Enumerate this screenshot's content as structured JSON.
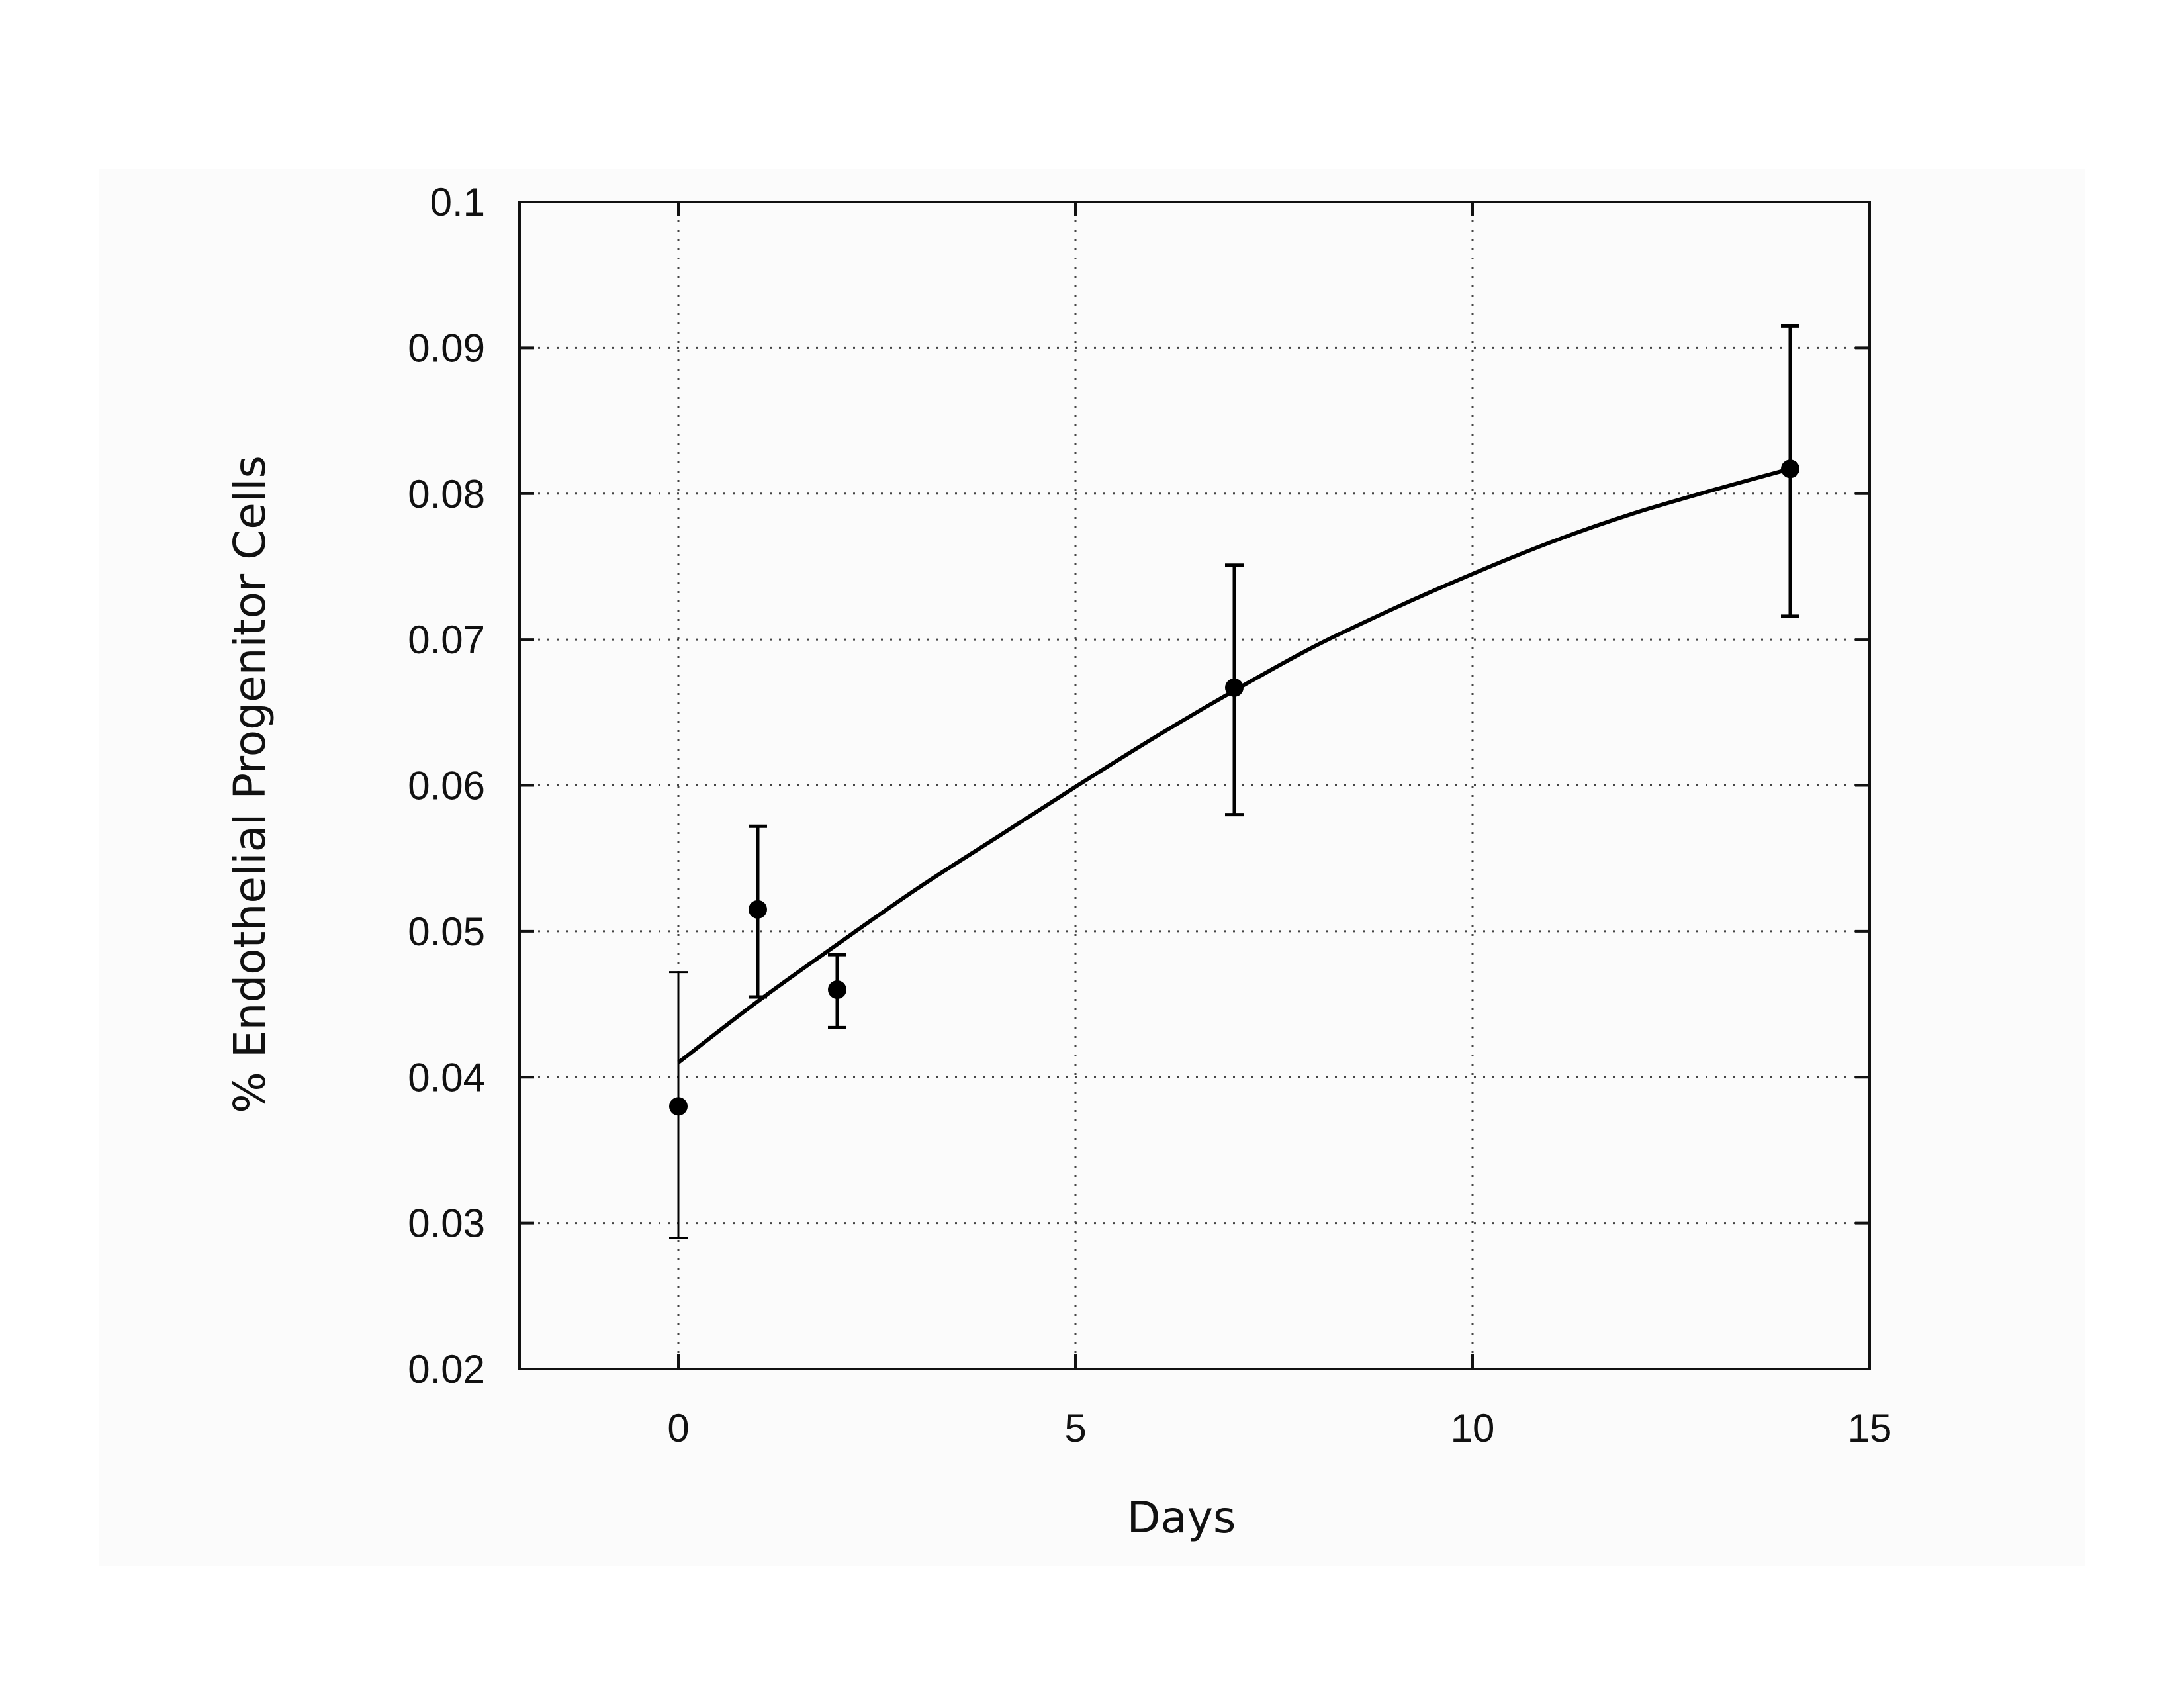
{
  "chart_data": {
    "type": "scatter",
    "title": "",
    "xlabel": "Days",
    "ylabel": "% Endothelial Progenitor Cells",
    "xlim": [
      -2,
      15
    ],
    "ylim": [
      0.02,
      0.1
    ],
    "grid": true,
    "x_ticks": [
      0,
      5,
      10,
      15
    ],
    "y_ticks": [
      0.02,
      0.03,
      0.04,
      0.05,
      0.06,
      0.07,
      0.08,
      0.09,
      0.1
    ],
    "x_tick_labels": [
      "0",
      "5",
      "10",
      "15"
    ],
    "y_tick_labels": [
      "0.02",
      "0.03",
      "0.04",
      "0.05",
      "0.06",
      "0.07",
      "0.08",
      "0.09",
      "0.1"
    ],
    "series": [
      {
        "x": [
          0,
          1,
          2,
          7,
          14
        ],
        "y": [
          0.038,
          0.0515,
          0.046,
          0.0667,
          0.0817
        ],
        "y_low": [
          0.029,
          0.0455,
          0.0434,
          0.058,
          0.0716
        ],
        "y_high": [
          0.0472,
          0.0572,
          0.0484,
          0.0751,
          0.0915
        ]
      }
    ],
    "fit_curve": {
      "x": [
        0,
        1,
        2,
        3,
        4,
        5,
        6,
        7,
        8,
        9,
        10,
        11,
        12,
        13,
        14
      ],
      "y": [
        0.041,
        0.0452,
        0.0491,
        0.0529,
        0.0564,
        0.0599,
        0.0633,
        0.0665,
        0.0695,
        0.0721,
        0.0745,
        0.0767,
        0.0786,
        0.0802,
        0.0817
      ]
    }
  },
  "colors": {
    "marker": "#000000",
    "curve": "#000000",
    "grid": "#444444",
    "panel_background": "#fbfbfb"
  }
}
